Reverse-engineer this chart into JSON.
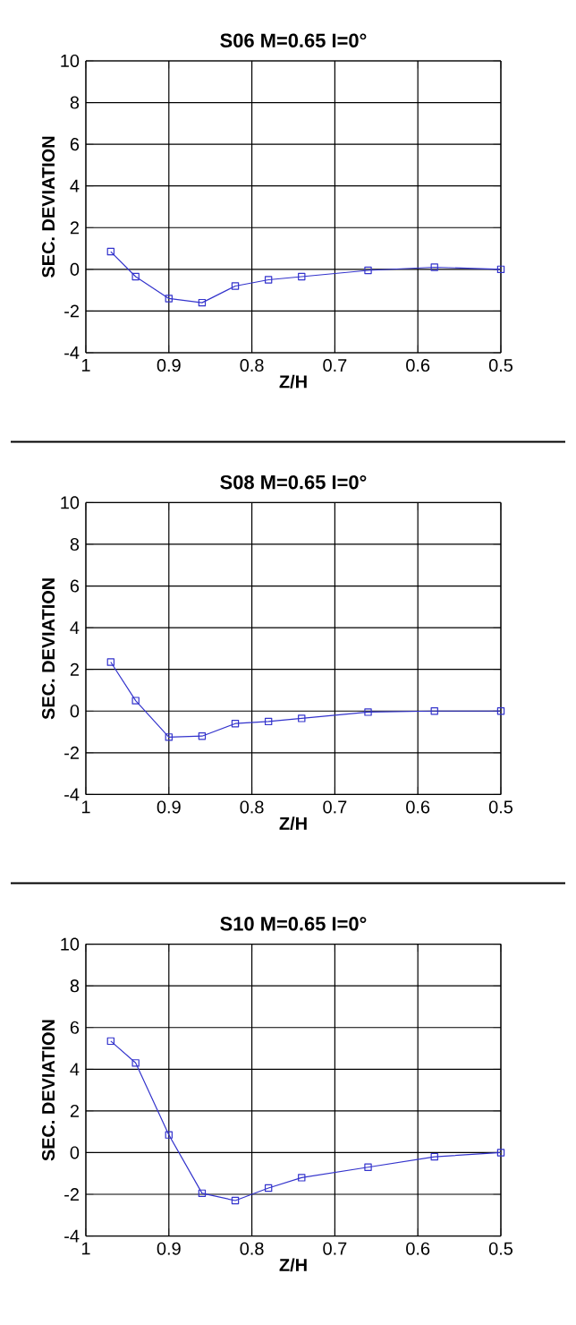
{
  "chart_data": [
    {
      "type": "line",
      "title": "S06      M=0.65      I=0°",
      "xlabel": "Z/H",
      "ylabel": "SEC. DEVIATION",
      "x": [
        0.97,
        0.94,
        0.9,
        0.86,
        0.82,
        0.78,
        0.74,
        0.66,
        0.58,
        0.5
      ],
      "series": [
        {
          "color": "#3333cc",
          "values": [
            0.85,
            -0.35,
            -1.4,
            -1.6,
            -0.8,
            -0.5,
            -0.35,
            -0.05,
            0.1,
            0
          ]
        }
      ],
      "xlim": [
        1,
        0.5
      ],
      "ylim": [
        -4,
        10
      ],
      "xticks": [
        1,
        0.9,
        0.8,
        0.7,
        0.6,
        0.5
      ],
      "yticks": [
        -4,
        -2,
        0,
        2,
        4,
        6,
        8,
        10
      ],
      "grid": true,
      "marker": "square",
      "line_style": "solid"
    },
    {
      "type": "line",
      "title": "S08      M=0.65      I=0°",
      "xlabel": "Z/H",
      "ylabel": "SEC. DEVIATION",
      "x": [
        0.97,
        0.94,
        0.9,
        0.86,
        0.82,
        0.78,
        0.74,
        0.66,
        0.58,
        0.5
      ],
      "series": [
        {
          "color": "#3333cc",
          "values": [
            2.35,
            0.5,
            -1.25,
            -1.2,
            -0.6,
            -0.5,
            -0.35,
            -0.05,
            0,
            0
          ]
        }
      ],
      "xlim": [
        1,
        0.5
      ],
      "ylim": [
        -4,
        10
      ],
      "xticks": [
        1,
        0.9,
        0.8,
        0.7,
        0.6,
        0.5
      ],
      "yticks": [
        -4,
        -2,
        0,
        2,
        4,
        6,
        8,
        10
      ],
      "grid": true,
      "marker": "square",
      "line_style": "solid"
    },
    {
      "type": "line",
      "title": "S10      M=0.65      I=0°",
      "xlabel": "Z/H",
      "ylabel": "SEC. DEVIATION",
      "x": [
        0.97,
        0.94,
        0.9,
        0.86,
        0.82,
        0.78,
        0.74,
        0.66,
        0.58,
        0.5
      ],
      "series": [
        {
          "color": "#3333cc",
          "values": [
            5.35,
            4.3,
            0.85,
            -1.95,
            -2.3,
            -1.7,
            -1.2,
            -0.7,
            -0.2,
            0
          ]
        }
      ],
      "xlim": [
        1,
        0.5
      ],
      "ylim": [
        -4,
        10
      ],
      "xticks": [
        1,
        0.9,
        0.8,
        0.7,
        0.6,
        0.5
      ],
      "yticks": [
        -4,
        -2,
        0,
        2,
        4,
        6,
        8,
        10
      ],
      "grid": true,
      "marker": "square",
      "line_style": "solid"
    }
  ]
}
